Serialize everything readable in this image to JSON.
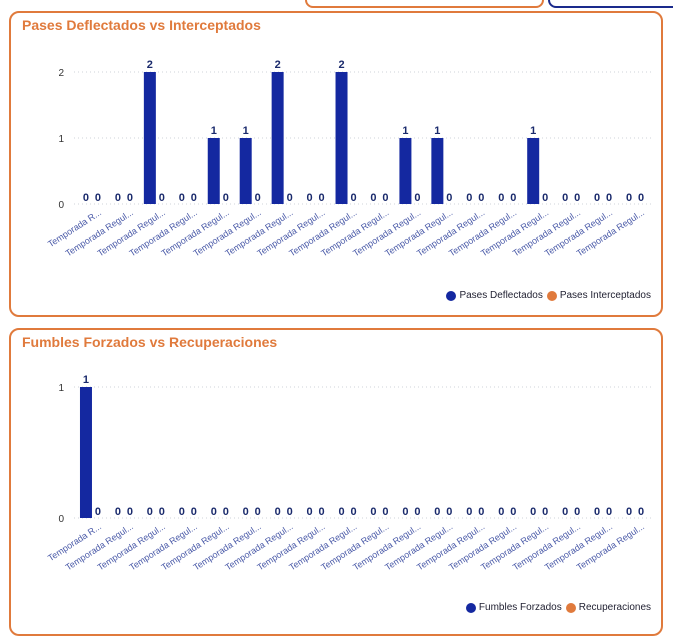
{
  "chart_data": [
    {
      "type": "bar",
      "title": "Pases Deflectados vs Interceptados",
      "categories": [
        "Temporada R...",
        "Temporada Regul...",
        "Temporada Regul...",
        "Temporada Regul...",
        "Temporada Regul...",
        "Temporada Regul...",
        "Temporada Regul...",
        "Temporada Regul...",
        "Temporada Regul...",
        "Temporada Regul...",
        "Temporada Regul...",
        "Temporada Regul...",
        "Temporada Regul...",
        "Temporada Regul...",
        "Temporada Regul...",
        "Temporada Regul...",
        "Temporada Regul...",
        "Temporada Regul..."
      ],
      "series": [
        {
          "name": "Pases Deflectados",
          "values": [
            0,
            0,
            2,
            0,
            1,
            1,
            2,
            0,
            2,
            0,
            1,
            1,
            0,
            0,
            1,
            0,
            0,
            0
          ],
          "color": "#1428a0"
        },
        {
          "name": "Pases Interceptados",
          "values": [
            0,
            0,
            0,
            0,
            0,
            0,
            0,
            0,
            0,
            0,
            0,
            0,
            0,
            0,
            0,
            0,
            0,
            0
          ],
          "color": "#e07a3c"
        }
      ],
      "yticks": [
        0,
        1,
        2
      ],
      "ylim": [
        0,
        2
      ],
      "grid": true,
      "legend_position": "bottom-right"
    },
    {
      "type": "bar",
      "title": "Fumbles Forzados vs Recuperaciones",
      "categories": [
        "Temporada R...",
        "Temporada Regul...",
        "Temporada Regul...",
        "Temporada Regul...",
        "Temporada Regul...",
        "Temporada Regul...",
        "Temporada Regul...",
        "Temporada Regul...",
        "Temporada Regul...",
        "Temporada Regul...",
        "Temporada Regul...",
        "Temporada Regul...",
        "Temporada Regul...",
        "Temporada Regul...",
        "Temporada Regul...",
        "Temporada Regul...",
        "Temporada Regul...",
        "Temporada Regul..."
      ],
      "series": [
        {
          "name": "Fumbles Forzados",
          "values": [
            1,
            0,
            0,
            0,
            0,
            0,
            0,
            0,
            0,
            0,
            0,
            0,
            0,
            0,
            0,
            0,
            0,
            0
          ],
          "color": "#1428a0"
        },
        {
          "name": "Recuperaciones",
          "values": [
            0,
            0,
            0,
            0,
            0,
            0,
            0,
            0,
            0,
            0,
            0,
            0,
            0,
            0,
            0,
            0,
            0,
            0
          ],
          "color": "#e07a3c"
        }
      ],
      "yticks": [
        0,
        1
      ],
      "ylim": [
        0,
        1
      ],
      "grid": true,
      "legend_position": "bottom-right"
    }
  ]
}
